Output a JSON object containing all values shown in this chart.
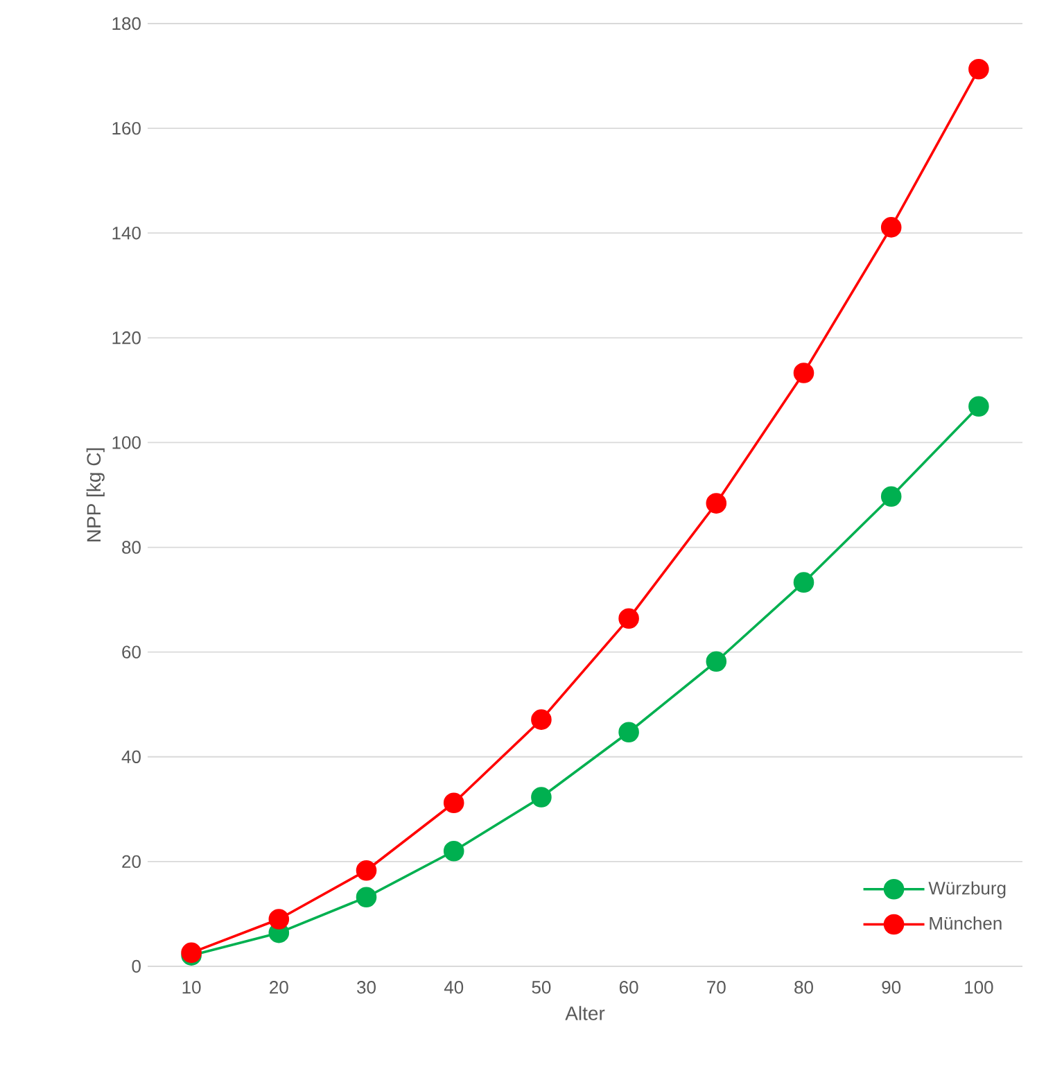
{
  "chart_data": {
    "type": "line",
    "xlabel": "Alter",
    "ylabel": "NPP [kg C]",
    "categories": [
      "10",
      "20",
      "30",
      "40",
      "50",
      "60",
      "70",
      "80",
      "90",
      "100"
    ],
    "series": [
      {
        "name": "Würzburg",
        "color": "#00b050",
        "values": [
          2.1,
          6.4,
          13.2,
          22,
          32.3,
          44.7,
          58.2,
          73.3,
          89.7,
          106.9
        ]
      },
      {
        "name": "München",
        "color": "#ff0000",
        "values": [
          2.6,
          9,
          18.3,
          31.2,
          47.1,
          66.4,
          88.4,
          113.3,
          141.1,
          171.3
        ]
      }
    ],
    "ylim": [
      0,
      180
    ],
    "yticks": [
      0,
      20,
      40,
      60,
      80,
      100,
      120,
      140,
      160,
      180
    ],
    "grid": "y",
    "legend": "bottom right",
    "marker": "circle",
    "line_style": "solid"
  }
}
